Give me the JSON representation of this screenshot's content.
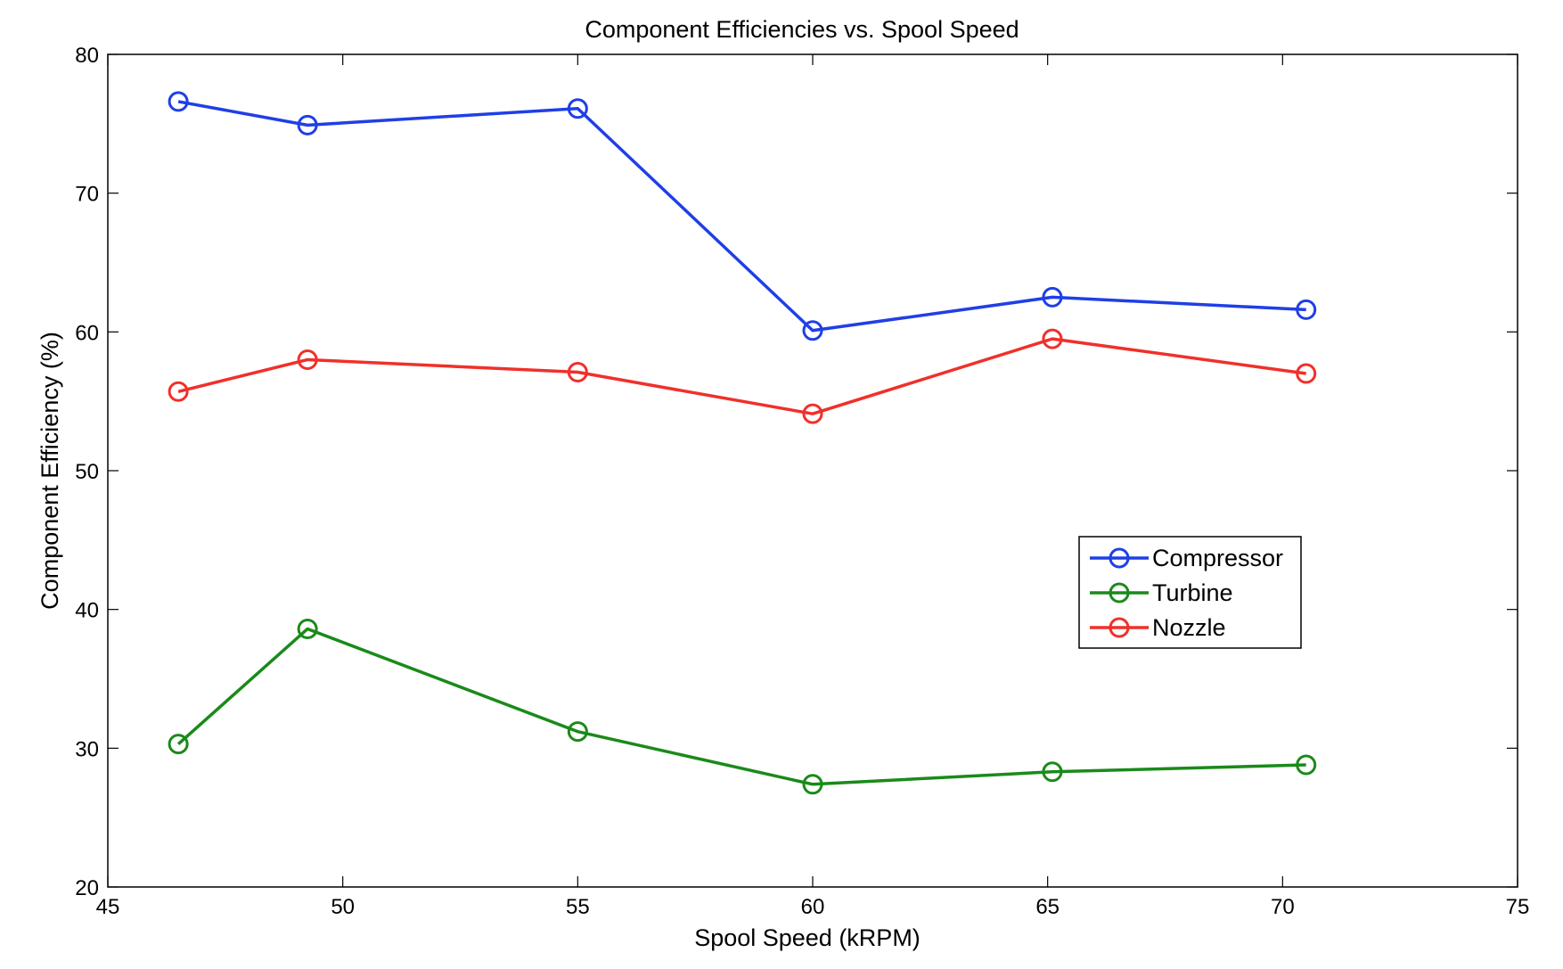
{
  "chart_data": {
    "type": "line",
    "title": "Component Efficiencies vs. Spool Speed",
    "xlabel": "Spool Speed (kRPM)",
    "ylabel": "Component Efficiency (%)",
    "xlim": [
      45,
      75
    ],
    "ylim": [
      20,
      80
    ],
    "xticks": [
      45,
      50,
      55,
      60,
      65,
      70,
      75
    ],
    "yticks": [
      20,
      30,
      40,
      50,
      60,
      70,
      80
    ],
    "x": [
      46.5,
      49.25,
      55,
      60,
      65.1,
      70.5
    ],
    "grid": false,
    "legend_position": "center-right",
    "marker": "circle",
    "series": [
      {
        "name": "Compressor",
        "color": "#1f3fe6",
        "values": [
          76.6,
          74.9,
          76.1,
          60.1,
          62.5,
          61.6
        ]
      },
      {
        "name": "Turbine",
        "color": "#1a8a1a",
        "values": [
          30.3,
          38.6,
          31.2,
          27.4,
          28.3,
          28.8
        ]
      },
      {
        "name": "Nozzle",
        "color": "#f0302a",
        "values": [
          55.7,
          58.0,
          57.1,
          54.1,
          59.5,
          57.0
        ]
      }
    ]
  }
}
